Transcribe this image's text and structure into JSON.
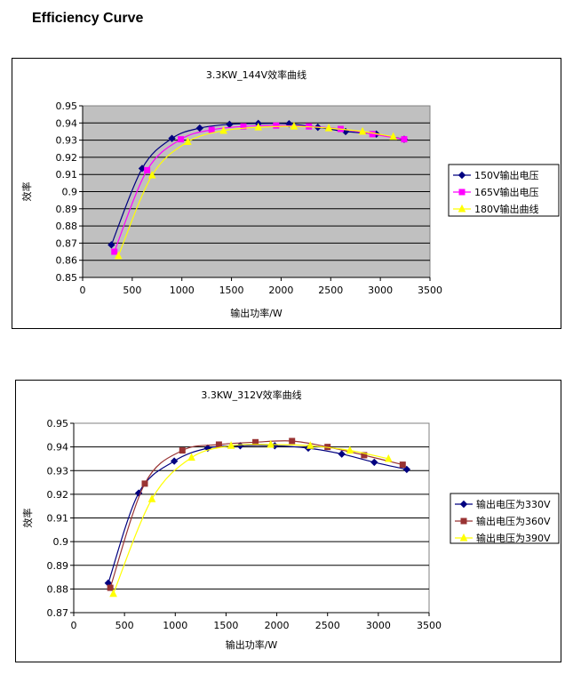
{
  "page": {
    "heading": "Efficiency Curve"
  },
  "chart_data": [
    {
      "type": "line",
      "title": "3.3KW_144V效率曲线",
      "xlabel": "输出功率/W",
      "ylabel": "效率",
      "xlim": [
        0,
        3500
      ],
      "ylim": [
        0.85,
        0.95
      ],
      "x_ticks": [
        "0",
        "500",
        "1000",
        "1500",
        "2000",
        "2500",
        "3000",
        "3500"
      ],
      "y_ticks": [
        "0.85",
        "0.86",
        "0.87",
        "0.88",
        "0.89",
        "0.9",
        "0.91",
        "0.92",
        "0.93",
        "0.94",
        "0.95"
      ],
      "grid": "horizontal",
      "legend_position": "right",
      "plot_background": "#c0c0c0",
      "series": [
        {
          "name": "150V输出电压",
          "color": "#000080",
          "marker": "diamond",
          "x": [
            290,
            600,
            900,
            1180,
            1480,
            1770,
            2080,
            2370,
            2650,
            2960,
            3240
          ],
          "y": [
            0.869,
            0.9135,
            0.931,
            0.937,
            0.9392,
            0.9397,
            0.9395,
            0.9375,
            0.935,
            0.9335,
            0.9305
          ]
        },
        {
          "name": "165V输出电压",
          "color": "#ff00ff",
          "marker": "square",
          "x": [
            320,
            650,
            990,
            1300,
            1620,
            1950,
            2280,
            2600,
            2920,
            3240
          ],
          "y": [
            0.865,
            0.9125,
            0.9305,
            0.936,
            0.938,
            0.9385,
            0.938,
            0.9365,
            0.9335,
            0.9305
          ]
        },
        {
          "name": "180V输出曲线",
          "color": "#ffff00",
          "marker": "triangle",
          "x": [
            360,
            700,
            1060,
            1420,
            1770,
            2130,
            2480,
            2820,
            3130
          ],
          "y": [
            0.8625,
            0.9095,
            0.929,
            0.9355,
            0.9375,
            0.938,
            0.937,
            0.935,
            0.932
          ]
        }
      ]
    },
    {
      "type": "line",
      "title": "3.3KW_312V效率曲线",
      "xlabel": "输出功率/W",
      "ylabel": "效率",
      "xlim": [
        0,
        3500
      ],
      "ylim": [
        0.87,
        0.95
      ],
      "x_ticks": [
        "0",
        "500",
        "1000",
        "1500",
        "2000",
        "2500",
        "3000",
        "3500"
      ],
      "y_ticks": [
        "0.87",
        "0.88",
        "0.89",
        "0.9",
        "0.91",
        "0.92",
        "0.93",
        "0.94",
        "0.95"
      ],
      "grid": "horizontal",
      "legend_position": "right",
      "plot_background": "#ffffff",
      "series": [
        {
          "name": "输出电压为330V",
          "color": "#000080",
          "marker": "diamond",
          "x": [
            340,
            640,
            990,
            1320,
            1640,
            1980,
            2310,
            2640,
            2960,
            3280
          ],
          "y": [
            0.8825,
            0.9205,
            0.934,
            0.9395,
            0.9405,
            0.9405,
            0.9395,
            0.937,
            0.9335,
            0.9305
          ]
        },
        {
          "name": "输出电压为360V",
          "color": "#993333",
          "marker": "square",
          "x": [
            360,
            700,
            1070,
            1430,
            1790,
            2150,
            2500,
            2860,
            3240
          ],
          "y": [
            0.8805,
            0.9245,
            0.9385,
            0.941,
            0.942,
            0.9425,
            0.94,
            0.9365,
            0.9325
          ]
        },
        {
          "name": "输出电压为390V",
          "color": "#ffff00",
          "marker": "triangle",
          "x": [
            390,
            770,
            1160,
            1550,
            1940,
            2330,
            2720,
            3100
          ],
          "y": [
            0.878,
            0.918,
            0.9355,
            0.9405,
            0.941,
            0.9405,
            0.9385,
            0.935
          ]
        }
      ]
    }
  ]
}
